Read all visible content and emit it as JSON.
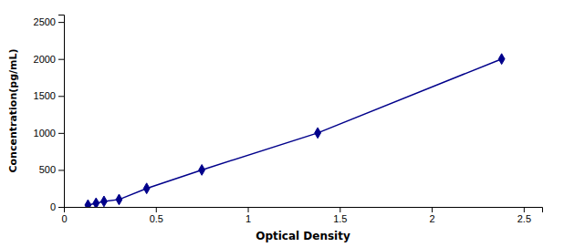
{
  "chart_data": {
    "type": "line",
    "x": [
      0.131,
      0.175,
      0.218,
      0.3,
      0.45,
      0.75,
      1.38,
      2.38
    ],
    "values": [
      25,
      50,
      75,
      100,
      250,
      500,
      1000,
      2000
    ],
    "color": "#00008B",
    "marker": "diamond",
    "xlabel": "Optical Density",
    "ylabel": "Concentration(pg/mL)",
    "xlim": [
      0,
      2.6
    ],
    "ylim": [
      0,
      2600
    ],
    "xticks": [
      0,
      0.5,
      1,
      1.5,
      2,
      2.5
    ],
    "yticks": [
      0,
      500,
      1000,
      1500,
      2000,
      2500
    ],
    "grid": false
  }
}
